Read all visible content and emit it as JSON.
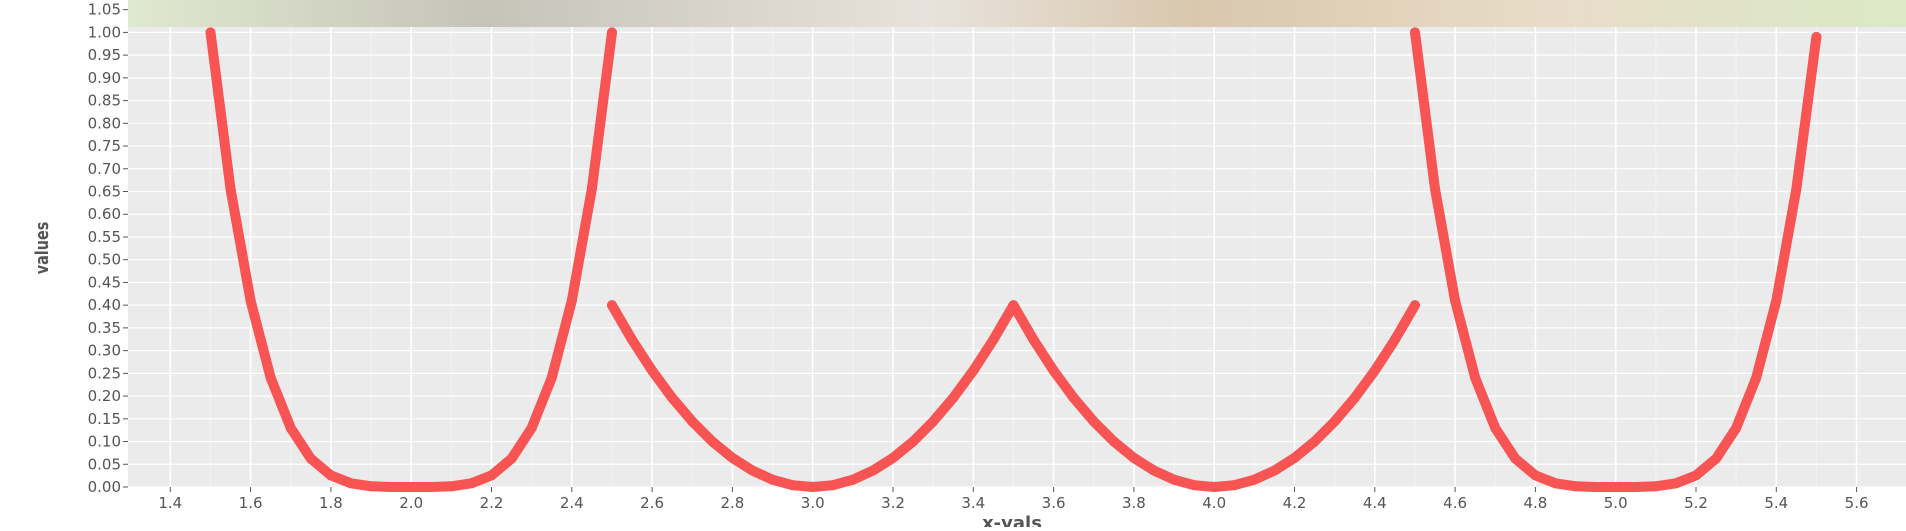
{
  "chart_data": {
    "type": "scatter",
    "title": "",
    "xlabel": "x-vals",
    "ylabel": "values",
    "xlim": [
      1.3,
      5.7
    ],
    "ylim": [
      0,
      1.05
    ],
    "x_ticks": [
      "1.4",
      "1.6",
      "1.8",
      "2.0",
      "2.2",
      "2.4",
      "2.6",
      "2.8",
      "3.0",
      "3.2",
      "3.4",
      "3.6",
      "3.8",
      "4.0",
      "4.2",
      "4.4",
      "4.6",
      "4.8",
      "5.0",
      "5.2",
      "5.4",
      "5.6"
    ],
    "y_ticks": [
      "0.00",
      "0.05",
      "0.10",
      "0.15",
      "0.20",
      "0.25",
      "0.30",
      "0.35",
      "0.40",
      "0.45",
      "0.50",
      "0.55",
      "0.60",
      "0.65",
      "0.70",
      "0.75",
      "0.80",
      "0.85",
      "0.90",
      "0.95",
      "1.00",
      "1.05"
    ],
    "grid": true,
    "background": "#ebebeb",
    "series": [
      {
        "color": "#f85454",
        "x": [
          1.5,
          1.55,
          1.6,
          1.65,
          1.7,
          1.75,
          1.8,
          1.85,
          1.9,
          1.95,
          2.0,
          2.05,
          2.1,
          2.15,
          2.2,
          2.25,
          2.3,
          2.35,
          2.4,
          2.45,
          2.5,
          2.5,
          2.55,
          2.6,
          2.65,
          2.7,
          2.75,
          2.8,
          2.85,
          2.9,
          2.95,
          3.0,
          3.05,
          3.1,
          3.15,
          3.2,
          3.25,
          3.3,
          3.35,
          3.4,
          3.45,
          3.5,
          3.55,
          3.6,
          3.65,
          3.7,
          3.75,
          3.8,
          3.85,
          3.9,
          3.95,
          4.0,
          4.05,
          4.1,
          4.15,
          4.2,
          4.25,
          4.3,
          4.35,
          4.4,
          4.45,
          4.5,
          4.5,
          4.55,
          4.6,
          4.65,
          4.7,
          4.75,
          4.8,
          4.85,
          4.9,
          4.95,
          5.0,
          5.05,
          5.1,
          5.15,
          5.2,
          5.25,
          5.3,
          5.35,
          5.4,
          5.45,
          5.5
        ],
        "y": [
          1.0,
          0.6561,
          0.4096,
          0.2401,
          0.1296,
          0.0625,
          0.0256,
          0.0081,
          0.0016,
          0.0001,
          0.0,
          0.0001,
          0.0016,
          0.0081,
          0.0256,
          0.0625,
          0.1296,
          0.2401,
          0.4096,
          0.6561,
          1.0,
          0.4,
          0.324,
          0.256,
          0.196,
          0.144,
          0.1,
          0.064,
          0.036,
          0.016,
          0.004,
          0.0,
          0.004,
          0.016,
          0.036,
          0.064,
          0.1,
          0.144,
          0.196,
          0.256,
          0.324,
          0.4,
          0.324,
          0.256,
          0.196,
          0.144,
          0.1,
          0.064,
          0.036,
          0.016,
          0.004,
          0.0,
          0.004,
          0.016,
          0.036,
          0.064,
          0.1,
          0.144,
          0.196,
          0.256,
          0.324,
          0.4,
          1.0,
          0.6561,
          0.4096,
          0.2401,
          0.1296,
          0.0625,
          0.0256,
          0.0081,
          0.0016,
          0.0001,
          0.0,
          0.0001,
          0.0016,
          0.0081,
          0.0256,
          0.0625,
          0.1296,
          0.2401,
          0.4096,
          0.6561,
          0.99
        ]
      }
    ]
  }
}
